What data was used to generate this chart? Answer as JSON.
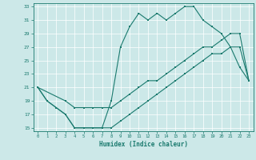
{
  "xlabel": "Humidex (Indice chaleur)",
  "bg_color": "#cce8e8",
  "grid_color": "#ffffff",
  "line_color": "#1a7a6e",
  "xmin": -0.5,
  "xmax": 23.5,
  "ymin": 14.5,
  "ymax": 33.5,
  "yticks": [
    15,
    17,
    19,
    21,
    23,
    25,
    27,
    29,
    31,
    33
  ],
  "xticks": [
    0,
    1,
    2,
    3,
    4,
    5,
    6,
    7,
    8,
    9,
    10,
    11,
    12,
    13,
    14,
    15,
    16,
    17,
    18,
    19,
    20,
    21,
    22,
    23
  ],
  "line1_x": [
    0,
    1,
    2,
    3,
    4,
    5,
    6,
    7,
    8,
    9,
    10,
    11,
    12,
    13,
    14,
    15,
    16,
    17,
    18,
    19,
    20,
    21,
    22,
    23
  ],
  "line1_y": [
    21,
    19,
    18,
    17,
    15,
    15,
    15,
    15,
    19,
    27,
    30,
    32,
    31,
    32,
    31,
    32,
    33,
    33,
    31,
    30,
    29,
    27,
    24,
    22
  ],
  "line2_x": [
    0,
    3,
    4,
    5,
    6,
    7,
    8,
    9,
    10,
    11,
    12,
    13,
    14,
    15,
    16,
    17,
    18,
    19,
    20,
    21,
    22,
    23
  ],
  "line2_y": [
    21,
    19,
    18,
    18,
    18,
    18,
    18,
    19,
    20,
    21,
    22,
    22,
    23,
    24,
    25,
    26,
    27,
    27,
    28,
    29,
    29,
    22
  ],
  "line3_x": [
    0,
    1,
    2,
    3,
    4,
    5,
    6,
    7,
    8,
    9,
    10,
    11,
    12,
    13,
    14,
    15,
    16,
    17,
    18,
    19,
    20,
    21,
    22,
    23
  ],
  "line3_y": [
    21,
    19,
    18,
    17,
    15,
    15,
    15,
    15,
    15,
    16,
    17,
    18,
    19,
    20,
    21,
    22,
    23,
    24,
    25,
    26,
    26,
    27,
    27,
    22
  ]
}
